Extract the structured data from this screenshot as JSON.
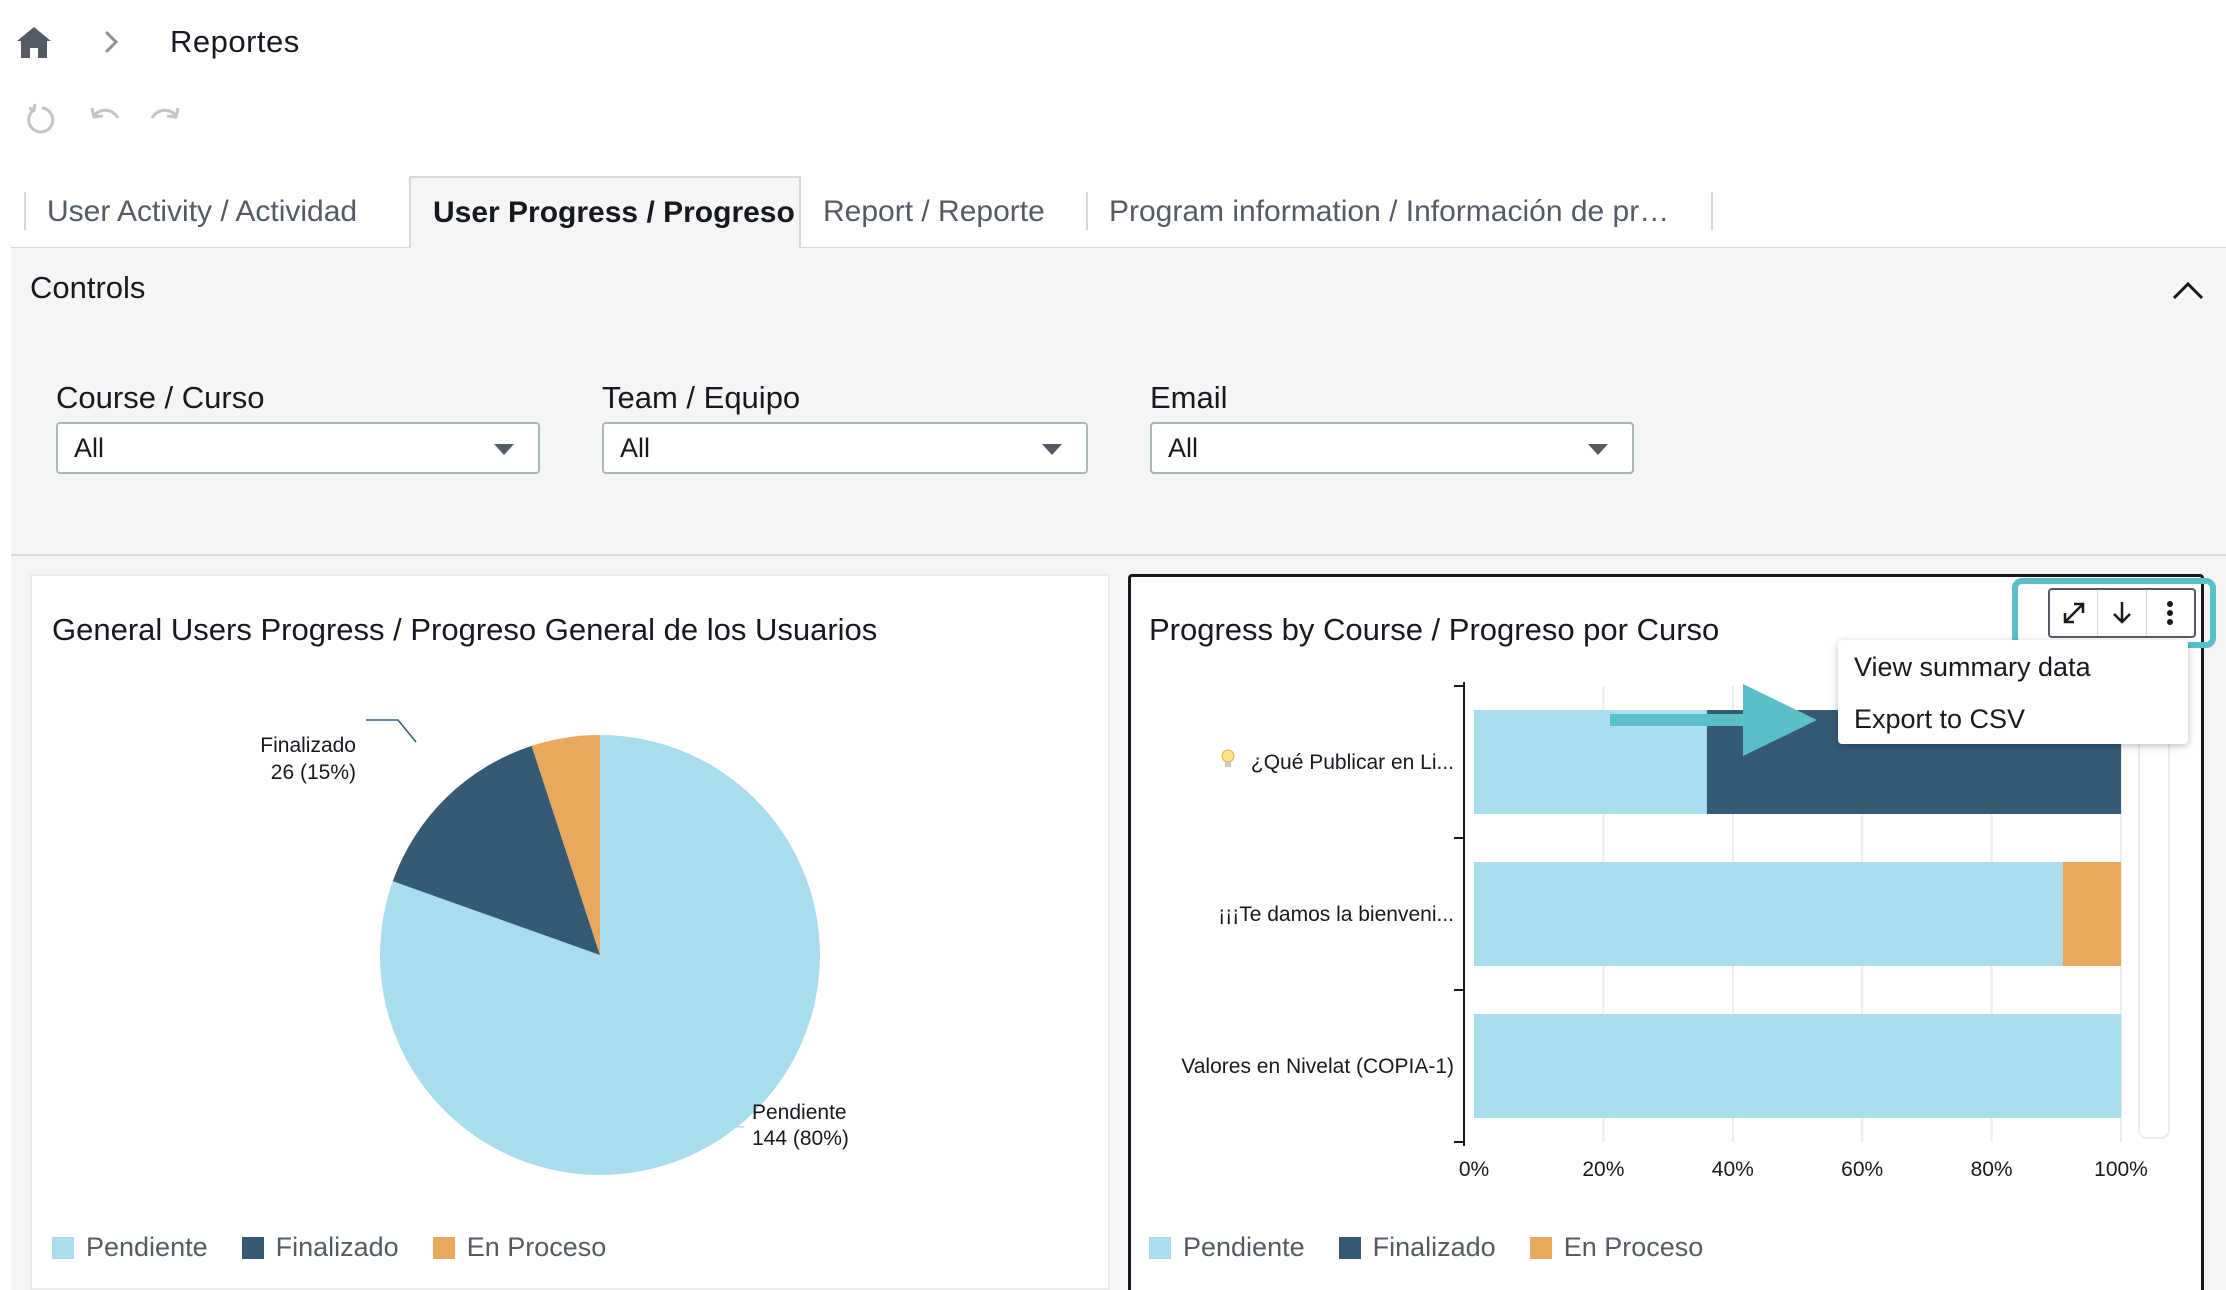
{
  "breadcrumb": {
    "current": "Reportes"
  },
  "tabs": [
    {
      "label": "User Activity / Actividad",
      "active": false
    },
    {
      "label": "User Progress / Progreso",
      "active": true
    },
    {
      "label": "Report / Reporte",
      "active": false
    },
    {
      "label": "Program information / Información de pr…",
      "active": false
    }
  ],
  "controls": {
    "title": "Controls",
    "filters": [
      {
        "label": "Course / Curso",
        "value": "All"
      },
      {
        "label": "Team / Equipo",
        "value": "All"
      },
      {
        "label": "Email",
        "value": "All"
      }
    ]
  },
  "colors": {
    "pendiente": "#aadcef",
    "finalizado": "#355a75",
    "en_proceso": "#e8a95f",
    "highlight": "#5abfc9"
  },
  "legend": [
    "Pendiente",
    "Finalizado",
    "En Proceso"
  ],
  "visual_menu": {
    "items": [
      "View summary data",
      "Export to CSV"
    ]
  },
  "chart_data": [
    {
      "type": "pie",
      "title": "General Users Progress / Progreso General de los Usuarios",
      "slices": [
        {
          "name": "Pendiente",
          "value": 144,
          "percent": 80,
          "label": [
            "Pendiente",
            "144 (80%)"
          ]
        },
        {
          "name": "Finalizado",
          "value": 26,
          "percent": 15,
          "label": [
            "Finalizado",
            "26 (15%)"
          ]
        },
        {
          "name": "En Proceso",
          "value": 9,
          "percent": 5
        }
      ],
      "legend_position": "bottom"
    },
    {
      "type": "bar",
      "orientation": "horizontal",
      "stacked": "percent",
      "title": "Progress by Course / Progreso por Curso",
      "categories": [
        "¿Qué Publicar en Li...",
        "¡¡¡Te damos la bienveni...",
        "Valores en Nivelat (COPIA-1)"
      ],
      "category_icons": [
        "bulb",
        "",
        ""
      ],
      "series": [
        {
          "name": "Pendiente",
          "values": [
            36,
            91,
            100
          ]
        },
        {
          "name": "Finalizado",
          "values": [
            64,
            0,
            0
          ]
        },
        {
          "name": "En Proceso",
          "values": [
            0,
            9,
            0
          ]
        }
      ],
      "x_ticks": [
        "0%",
        "20%",
        "40%",
        "60%",
        "80%",
        "100%"
      ],
      "xlim": [
        0,
        100
      ],
      "grid": true,
      "legend_position": "bottom"
    }
  ]
}
